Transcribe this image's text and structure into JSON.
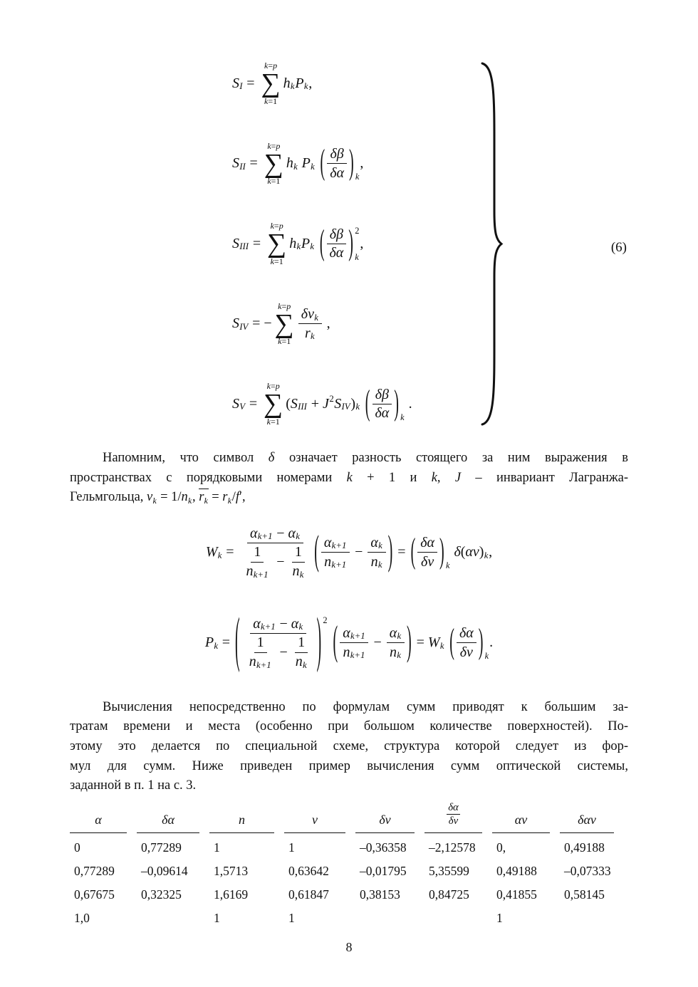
{
  "page": {
    "number": "8"
  },
  "eq6": {
    "label": "(6)",
    "rows": [
      [
        "r",
        [
          "i",
          "S"
        ],
        [
          "d",
          "I"
        ],
        [
          "u",
          " = "
        ],
        [
          "sum",
          [
            "r",
            [
              "i",
              "k"
            ],
            [
              "u",
              "="
            ],
            [
              "i",
              "p"
            ]
          ],
          [
            "r",
            [
              "i",
              "k"
            ],
            [
              "u",
              "="
            ],
            [
              "u",
              "1"
            ]
          ]
        ],
        [
          "i",
          "h"
        ],
        [
          "d",
          "k"
        ],
        [
          "i",
          "P"
        ],
        [
          "d",
          "k"
        ],
        [
          "u",
          ","
        ]
      ],
      [
        "r",
        [
          "i",
          "S"
        ],
        [
          "d",
          "II"
        ],
        [
          "u",
          " = "
        ],
        [
          "sum",
          [
            "r",
            [
              "i",
              "k"
            ],
            [
              "u",
              "="
            ],
            [
              "i",
              "p"
            ]
          ],
          [
            "r",
            [
              "i",
              "k"
            ],
            [
              "u",
              "="
            ],
            [
              "u",
              "1"
            ]
          ]
        ],
        [
          "i",
          "h"
        ],
        [
          "d",
          "k"
        ],
        [
          "u",
          " "
        ],
        [
          "i",
          "P"
        ],
        [
          "d",
          "k"
        ],
        [
          "u",
          " "
        ],
        [
          "pg",
          [
            "f",
            [
              "r",
              [
                "i",
                "δβ"
              ]
            ],
            [
              "r",
              [
                "i",
                "δα"
              ]
            ]
          ],
          "k",
          "",
          2.5
        ],
        [
          "u",
          ","
        ]
      ],
      [
        "r",
        [
          "i",
          "S"
        ],
        [
          "d",
          "III"
        ],
        [
          "u",
          " = "
        ],
        [
          "sum",
          [
            "r",
            [
              "i",
              "k"
            ],
            [
              "u",
              "="
            ],
            [
              "i",
              "p"
            ]
          ],
          [
            "r",
            [
              "i",
              "k"
            ],
            [
              "u",
              "="
            ],
            [
              "u",
              "1"
            ]
          ]
        ],
        [
          "i",
          "h"
        ],
        [
          "d",
          "k"
        ],
        [
          "i",
          "P"
        ],
        [
          "d",
          "k"
        ],
        [
          "u",
          " "
        ],
        [
          "pg",
          [
            "f",
            [
              "r",
              [
                "i",
                "δβ"
              ]
            ],
            [
              "r",
              [
                "i",
                "δα"
              ]
            ]
          ],
          "k",
          "2",
          2.5
        ],
        [
          "u",
          ","
        ]
      ],
      [
        "r",
        [
          "i",
          "S"
        ],
        [
          "d",
          "IV"
        ],
        [
          "u",
          " = −"
        ],
        [
          "sum",
          [
            "r",
            [
              "i",
              "k"
            ],
            [
              "u",
              "="
            ],
            [
              "i",
              "p"
            ]
          ],
          [
            "r",
            [
              "i",
              "k"
            ],
            [
              "u",
              "="
            ],
            [
              "u",
              "1"
            ]
          ]
        ],
        [
          "f",
          [
            "r",
            [
              "i",
              "δν"
            ],
            [
              "d",
              "k"
            ]
          ],
          [
            "r",
            [
              "i",
              "r"
            ],
            [
              "d",
              "k"
            ]
          ]
        ],
        [
          "u",
          " ,"
        ]
      ],
      [
        "r",
        [
          "i",
          "S"
        ],
        [
          "d",
          "V"
        ],
        [
          "u",
          " = "
        ],
        [
          "sum",
          [
            "r",
            [
              "i",
              "k"
            ],
            [
              "u",
              "="
            ],
            [
              "i",
              "p"
            ]
          ],
          [
            "r",
            [
              "i",
              "k"
            ],
            [
              "u",
              "="
            ],
            [
              "u",
              "1"
            ]
          ]
        ],
        [
          "u",
          "("
        ],
        [
          "i",
          "S"
        ],
        [
          "d",
          "III"
        ],
        [
          "u",
          " + "
        ],
        [
          "i",
          "J"
        ],
        [
          "e",
          "2"
        ],
        [
          "i",
          "S"
        ],
        [
          "d",
          "IV"
        ],
        [
          "u",
          ")"
        ],
        [
          "d",
          "k"
        ],
        [
          "u",
          " "
        ],
        [
          "pg",
          [
            "f",
            [
              "r",
              [
                "i",
                "δβ"
              ]
            ],
            [
              "r",
              [
                "i",
                "δα"
              ]
            ]
          ],
          "k",
          "",
          2.5
        ],
        [
          "u",
          " ."
        ]
      ]
    ]
  },
  "para1": {
    "lines": [
      [
        "rb",
        [
          "u",
          "Напомним, что символ "
        ],
        [
          "i",
          "δ"
        ],
        [
          "u",
          " означает разность стоящего за ним выражения в"
        ]
      ],
      [
        "rb",
        [
          "u",
          "пространствах с порядковыми номерами "
        ],
        [
          "i",
          "k"
        ],
        [
          "u",
          " + 1 и "
        ],
        [
          "i",
          "k"
        ],
        [
          "u",
          ", "
        ],
        [
          "i",
          "J"
        ],
        [
          "u",
          " – инвариант Лагранжа-"
        ]
      ],
      [
        "rb",
        [
          "u",
          "Гельмгольца, "
        ],
        [
          "i",
          "ν"
        ],
        [
          "d",
          "k"
        ],
        [
          "u",
          " = 1/"
        ],
        [
          "i",
          "n"
        ],
        [
          "d",
          "k"
        ],
        [
          "u",
          ", "
        ],
        [
          "ov",
          [
            "rb",
            [
              "i",
              "r"
            ],
            [
              "d",
              "k"
            ]
          ]
        ],
        [
          "u",
          " = "
        ],
        [
          "i",
          "r"
        ],
        [
          "d",
          "k"
        ],
        [
          "u",
          "/"
        ],
        [
          "i",
          "f"
        ],
        [
          "u",
          "′,"
        ]
      ]
    ]
  },
  "eqW": [
    "r",
    [
      "i",
      "W"
    ],
    [
      "d",
      "k"
    ],
    [
      "u",
      " = "
    ],
    [
      "f",
      [
        "r",
        [
          "i",
          "α"
        ],
        [
          "d",
          "k+1"
        ],
        [
          "u",
          " − "
        ],
        [
          "i",
          "α"
        ],
        [
          "d",
          "k"
        ]
      ],
      [
        "r",
        [
          "f",
          [
            "r",
            [
              "u",
              "1"
            ]
          ],
          [
            "r",
            [
              "i",
              "n"
            ],
            [
              "d",
              "k+1"
            ]
          ]
        ],
        [
          "u",
          " − "
        ],
        [
          "f",
          [
            "r",
            [
              "u",
              "1"
            ]
          ],
          [
            "r",
            [
              "i",
              "n"
            ],
            [
              "d",
              "k"
            ]
          ]
        ]
      ]
    ],
    [
      "pg",
      [
        "r",
        [
          "f",
          [
            "r",
            [
              "i",
              "α"
            ],
            [
              "d",
              "k+1"
            ]
          ],
          [
            "r",
            [
              "i",
              "n"
            ],
            [
              "d",
              "k+1"
            ]
          ]
        ],
        [
          "u",
          " − "
        ],
        [
          "f",
          [
            "r",
            [
              "i",
              "α"
            ],
            [
              "d",
              "k"
            ]
          ],
          [
            "r",
            [
              "i",
              "n"
            ],
            [
              "d",
              "k"
            ]
          ]
        ]
      ],
      "",
      "",
      2.9
    ],
    [
      "u",
      " = "
    ],
    [
      "pg",
      [
        "f",
        [
          "r",
          [
            "i",
            "δα"
          ]
        ],
        [
          "r",
          [
            "i",
            "δν"
          ]
        ]
      ],
      "k",
      "",
      2.5
    ],
    [
      "u",
      " "
    ],
    [
      "i",
      "δ"
    ],
    [
      "u",
      "("
    ],
    [
      "i",
      "αν"
    ],
    [
      "u",
      ")"
    ],
    [
      "d",
      "k"
    ],
    [
      "u",
      ","
    ]
  ],
  "eqP": [
    "r",
    [
      "i",
      "P"
    ],
    [
      "d",
      "k"
    ],
    [
      "u",
      " = "
    ],
    [
      "pg",
      [
        "f",
        [
          "r",
          [
            "i",
            "α"
          ],
          [
            "d",
            "k+1"
          ],
          [
            "u",
            " − "
          ],
          [
            "i",
            "α"
          ],
          [
            "d",
            "k"
          ]
        ],
        [
          "r",
          [
            "f",
            [
              "r",
              [
                "u",
                "1"
              ]
            ],
            [
              "r",
              [
                "i",
                "n"
              ],
              [
                "d",
                "k+1"
              ]
            ]
          ],
          [
            "u",
            " − "
          ],
          [
            "f",
            [
              "r",
              [
                "u",
                "1"
              ]
            ],
            [
              "r",
              [
                "i",
                "n"
              ],
              [
                "d",
                "k"
              ]
            ]
          ]
        ]
      ],
      "",
      "2",
      4.3
    ],
    [
      "u",
      " "
    ],
    [
      "pg",
      [
        "r",
        [
          "f",
          [
            "r",
            [
              "i",
              "α"
            ],
            [
              "d",
              "k+1"
            ]
          ],
          [
            "r",
            [
              "i",
              "n"
            ],
            [
              "d",
              "k+1"
            ]
          ]
        ],
        [
          "u",
          " − "
        ],
        [
          "f",
          [
            "r",
            [
              "i",
              "α"
            ],
            [
              "d",
              "k"
            ]
          ],
          [
            "r",
            [
              "i",
              "n"
            ],
            [
              "d",
              "k"
            ]
          ]
        ]
      ],
      "",
      "",
      2.9
    ],
    [
      "u",
      " = "
    ],
    [
      "i",
      "W"
    ],
    [
      "d",
      "k"
    ],
    [
      "u",
      " "
    ],
    [
      "pg",
      [
        "f",
        [
          "r",
          [
            "i",
            "δα"
          ]
        ],
        [
          "r",
          [
            "i",
            "δν"
          ]
        ]
      ],
      "k",
      "",
      2.5
    ],
    [
      "u",
      "."
    ]
  ],
  "para2": {
    "lines": [
      [
        "rb",
        [
          "u",
          "Вычисления непосредственно по формулам сумм приводят к большим за-"
        ]
      ],
      [
        "rb",
        [
          "u",
          "тратам времени и места (особенно при большом количестве поверхностей). По-"
        ]
      ],
      [
        "rb",
        [
          "u",
          "этому это делается по специальной схеме, структура которой следует из фор-"
        ]
      ],
      [
        "rb",
        [
          "u",
          "мул для сумм. Ниже приведен пример вычисления сумм оптической системы,"
        ]
      ],
      [
        "rb",
        [
          "u",
          "заданной в п. 1 на с. 3."
        ]
      ]
    ]
  },
  "table": {
    "headers": [
      [
        "rb",
        [
          "i",
          "α"
        ]
      ],
      [
        "rb",
        [
          "i",
          "δα"
        ]
      ],
      [
        "rb",
        [
          "i",
          "n"
        ]
      ],
      [
        "rb",
        [
          "i",
          "ν"
        ]
      ],
      [
        "rb",
        [
          "i",
          "δν"
        ]
      ],
      [
        "f",
        [
          "r",
          [
            "i",
            "δα"
          ]
        ],
        [
          "r",
          [
            "i",
            "δν"
          ]
        ]
      ],
      [
        "rb",
        [
          "i",
          "αν"
        ]
      ],
      [
        "rb",
        [
          "i",
          "δαν"
        ]
      ]
    ],
    "rows": [
      [
        "0",
        "0,77289",
        "1",
        "1",
        "–0,36358",
        "–2,12578",
        "0,",
        "0,49188"
      ],
      [
        "0,77289",
        "–0,09614",
        "1,5713",
        "0,63642",
        "–0,01795",
        "5,35599",
        "0,49188",
        "–0,07333"
      ],
      [
        "0,67675",
        "0,32325",
        "1,6169",
        "0,61847",
        "0,38153",
        "0,84725",
        "0,41855",
        "0,58145"
      ],
      [
        "1,0",
        "",
        "1",
        "1",
        "",
        "",
        "1",
        ""
      ]
    ]
  }
}
